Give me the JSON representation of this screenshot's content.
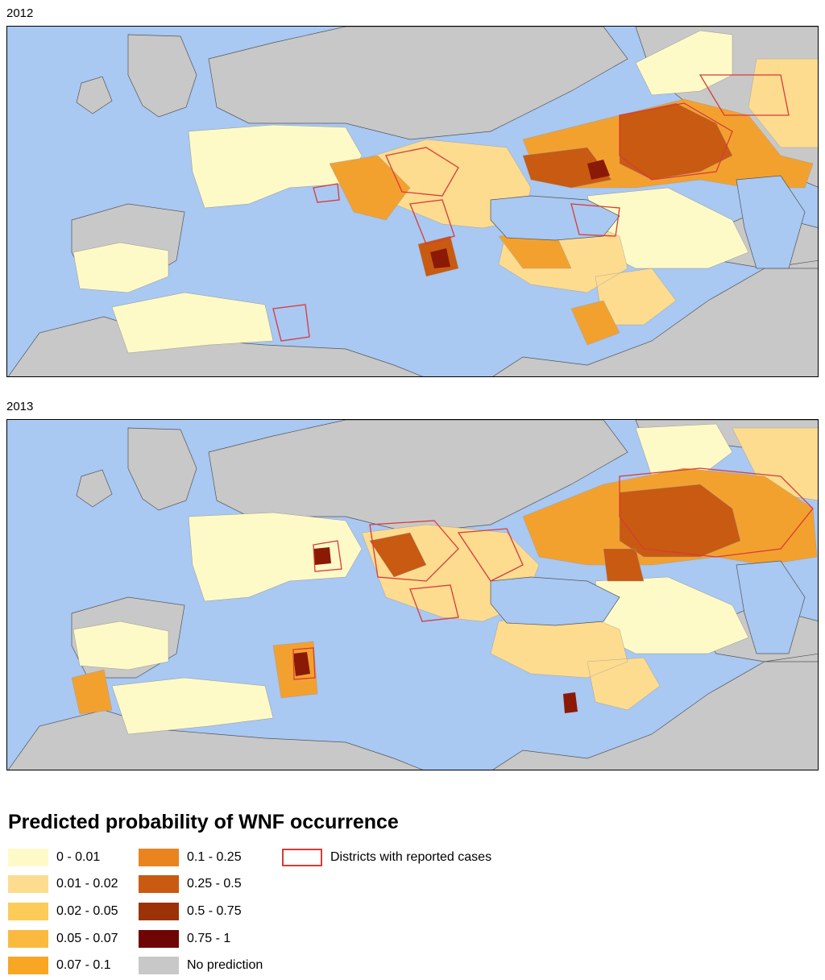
{
  "panels": [
    {
      "year": "2012"
    },
    {
      "year": "2013"
    }
  ],
  "legend": {
    "title": "Predicted probability of WNF occurrence",
    "classes": [
      {
        "label": "0 - 0.01",
        "color": "#fefac8"
      },
      {
        "label": "0.01 - 0.02",
        "color": "#fddc8f"
      },
      {
        "label": "0.02 - 0.05",
        "color": "#fdcb57"
      },
      {
        "label": "0.05 - 0.07",
        "color": "#fbba3f"
      },
      {
        "label": "0.07 - 0.1",
        "color": "#f9a625"
      },
      {
        "label": "0.1 - 0.25",
        "color": "#e9841f"
      },
      {
        "label": "0.25 - 0.5",
        "color": "#c95a11"
      },
      {
        "label": "0.5 - 0.75",
        "color": "#9c3208"
      },
      {
        "label": "0.75 - 1",
        "color": "#6f0505"
      },
      {
        "label": "No prediction",
        "color": "#c8c8c8"
      }
    ],
    "outline": {
      "label": "Districts with reported cases",
      "color": "#d93a3a"
    }
  },
  "colors": {
    "sea": "#a9c8f2",
    "no_prediction_land": "#c8c8c8",
    "border": "#555555"
  }
}
